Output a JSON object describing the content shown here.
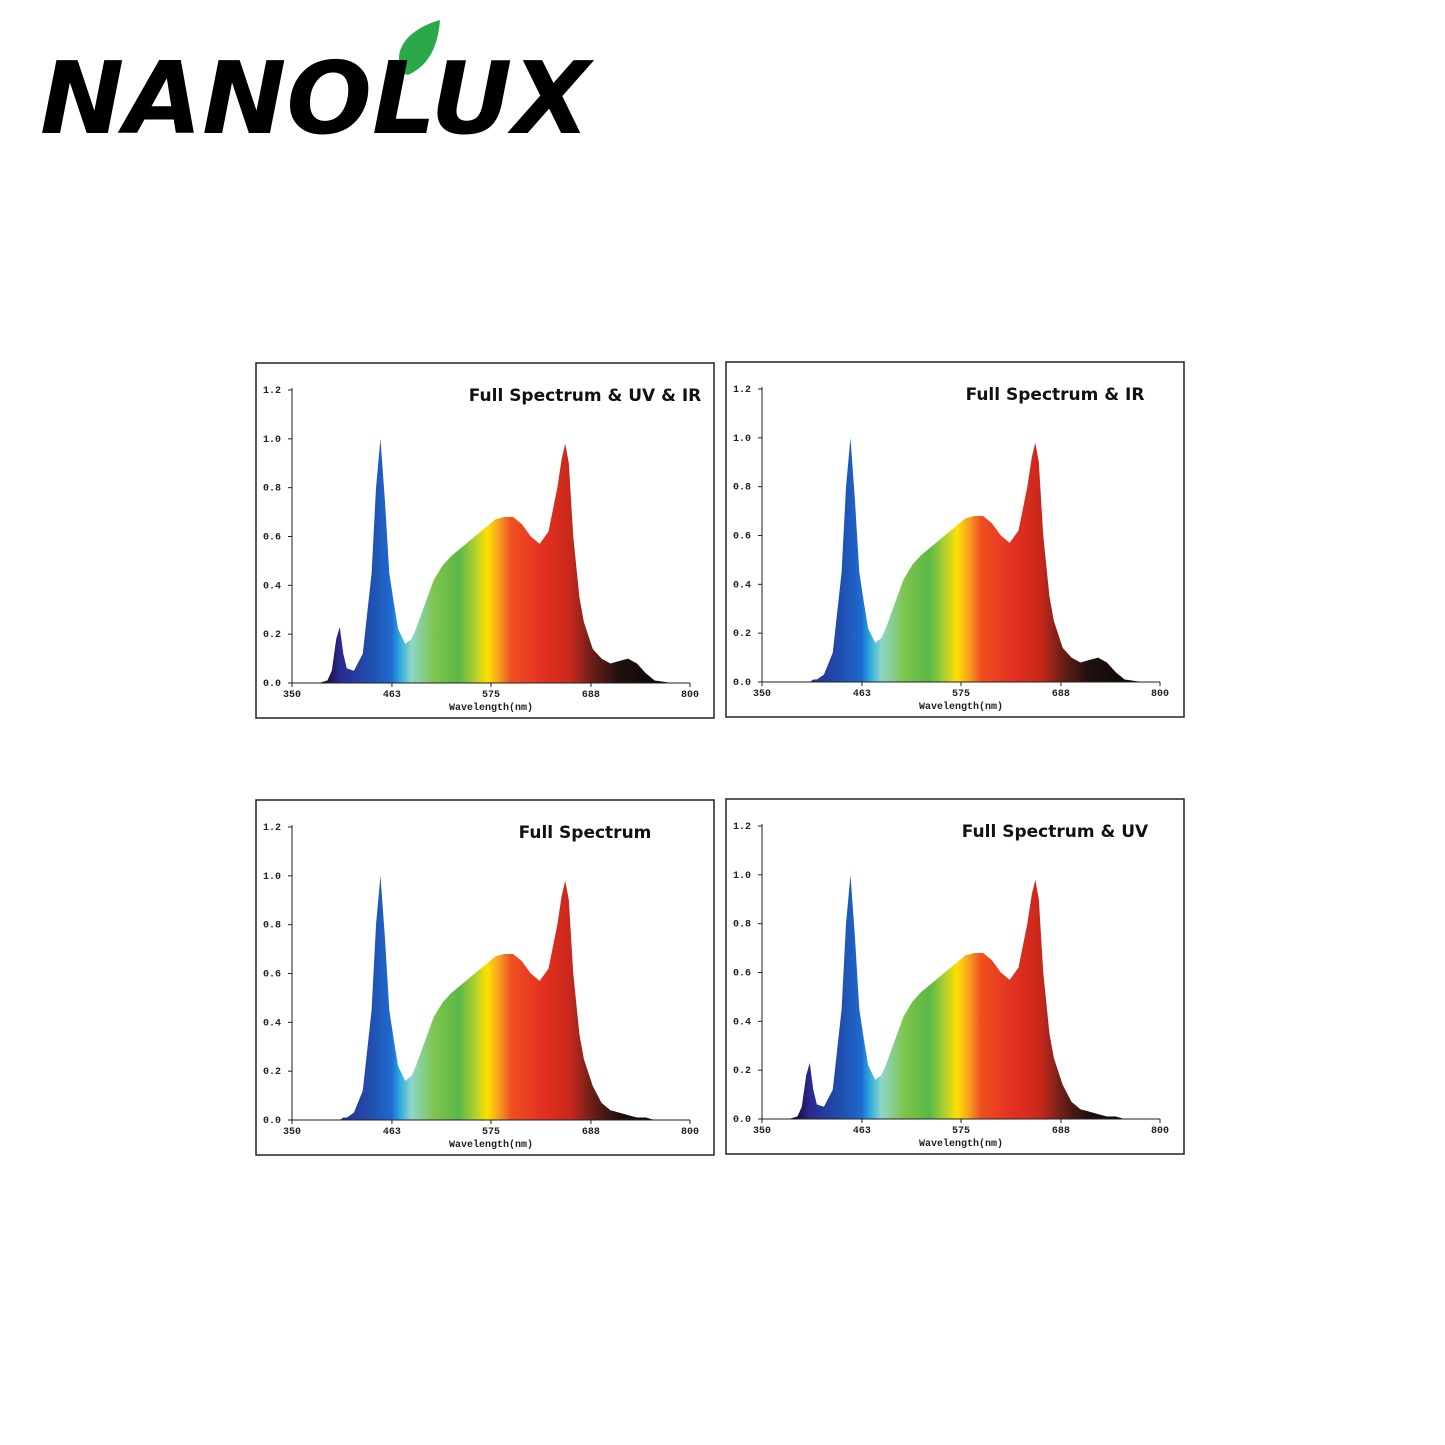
{
  "logo": "NANOLUX",
  "chart_data": [
    {
      "type": "area",
      "title": "Full Spectrum & UV & IR",
      "x_label": "Wavelength(nm)",
      "x": [
        350,
        380,
        390,
        395,
        400,
        404,
        408,
        412,
        420,
        430,
        440,
        445,
        450,
        455,
        460,
        465,
        470,
        478,
        485,
        490,
        500,
        510,
        520,
        530,
        540,
        550,
        560,
        570,
        580,
        590,
        600,
        610,
        620,
        630,
        640,
        650,
        655,
        659,
        663,
        668,
        675,
        680,
        690,
        700,
        710,
        720,
        730,
        740,
        750,
        760,
        780,
        800
      ],
      "values": [
        0,
        0,
        0.01,
        0.05,
        0.18,
        0.23,
        0.12,
        0.06,
        0.05,
        0.12,
        0.45,
        0.8,
        1.0,
        0.75,
        0.45,
        0.33,
        0.22,
        0.16,
        0.18,
        0.22,
        0.32,
        0.42,
        0.48,
        0.52,
        0.55,
        0.58,
        0.61,
        0.64,
        0.67,
        0.68,
        0.68,
        0.65,
        0.6,
        0.57,
        0.62,
        0.8,
        0.92,
        0.98,
        0.9,
        0.6,
        0.35,
        0.25,
        0.14,
        0.1,
        0.08,
        0.09,
        0.1,
        0.08,
        0.04,
        0.01,
        0,
        0
      ],
      "xlim": [
        350,
        800
      ],
      "xticks": [
        350,
        463,
        575,
        688,
        800
      ],
      "ylim": [
        0,
        1.2
      ],
      "yticks": [
        {
          "value": 0,
          "label": "0.0"
        },
        0.2,
        0.4,
        0.6,
        0.8,
        {
          "value": 1,
          "label": "1.0"
        },
        1.2
      ]
    },
    {
      "type": "area",
      "title": "Full Spectrum & IR",
      "x_label": "Wavelength(nm)",
      "x": [
        350,
        380,
        390,
        395,
        400,
        404,
        408,
        412,
        420,
        430,
        440,
        445,
        450,
        455,
        460,
        465,
        470,
        478,
        485,
        490,
        500,
        510,
        520,
        530,
        540,
        550,
        560,
        570,
        580,
        590,
        600,
        610,
        620,
        630,
        640,
        650,
        655,
        659,
        663,
        668,
        675,
        680,
        690,
        700,
        710,
        720,
        730,
        740,
        750,
        760,
        780,
        800
      ],
      "values": [
        0,
        0,
        0,
        0,
        0,
        0,
        0.01,
        0.01,
        0.03,
        0.12,
        0.45,
        0.8,
        1.0,
        0.75,
        0.45,
        0.33,
        0.22,
        0.16,
        0.18,
        0.22,
        0.32,
        0.42,
        0.48,
        0.52,
        0.55,
        0.58,
        0.61,
        0.64,
        0.67,
        0.68,
        0.68,
        0.65,
        0.6,
        0.57,
        0.62,
        0.8,
        0.92,
        0.98,
        0.9,
        0.6,
        0.35,
        0.25,
        0.14,
        0.1,
        0.08,
        0.09,
        0.1,
        0.08,
        0.04,
        0.01,
        0,
        0
      ],
      "xlim": [
        350,
        800
      ],
      "xticks": [
        350,
        463,
        575,
        688,
        800
      ],
      "ylim": [
        0,
        1.2
      ],
      "yticks": [
        {
          "value": 0,
          "label": "0.0"
        },
        0.2,
        0.4,
        0.6,
        0.8,
        {
          "value": 1,
          "label": "1.0"
        },
        1.2
      ]
    },
    {
      "type": "area",
      "title": "Full Spectrum",
      "x_label": "Wavelength(nm)",
      "x": [
        350,
        380,
        390,
        395,
        400,
        404,
        408,
        412,
        420,
        430,
        440,
        445,
        450,
        455,
        460,
        465,
        470,
        478,
        485,
        490,
        500,
        510,
        520,
        530,
        540,
        550,
        560,
        570,
        580,
        590,
        600,
        610,
        620,
        630,
        640,
        650,
        655,
        659,
        663,
        668,
        675,
        680,
        690,
        700,
        710,
        720,
        730,
        740,
        750,
        760,
        780,
        800
      ],
      "values": [
        0,
        0,
        0,
        0,
        0,
        0,
        0.01,
        0.01,
        0.03,
        0.12,
        0.45,
        0.8,
        1.0,
        0.75,
        0.45,
        0.33,
        0.22,
        0.16,
        0.18,
        0.22,
        0.32,
        0.42,
        0.48,
        0.52,
        0.55,
        0.58,
        0.61,
        0.64,
        0.67,
        0.68,
        0.68,
        0.65,
        0.6,
        0.57,
        0.62,
        0.8,
        0.92,
        0.98,
        0.9,
        0.6,
        0.35,
        0.25,
        0.14,
        0.07,
        0.04,
        0.03,
        0.02,
        0.01,
        0.01,
        0,
        0,
        0
      ],
      "xlim": [
        350,
        800
      ],
      "xticks": [
        350,
        463,
        575,
        688,
        800
      ],
      "ylim": [
        0,
        1.2
      ],
      "yticks": [
        {
          "value": 0,
          "label": "0.0"
        },
        0.2,
        0.4,
        0.6,
        0.8,
        {
          "value": 1,
          "label": "1.0"
        },
        1.2
      ]
    },
    {
      "type": "area",
      "title": "Full Spectrum & UV",
      "x_label": "Wavelength(nm)",
      "x": [
        350,
        380,
        390,
        395,
        400,
        404,
        408,
        412,
        420,
        430,
        440,
        445,
        450,
        455,
        460,
        465,
        470,
        478,
        485,
        490,
        500,
        510,
        520,
        530,
        540,
        550,
        560,
        570,
        580,
        590,
        600,
        610,
        620,
        630,
        640,
        650,
        655,
        659,
        663,
        668,
        675,
        680,
        690,
        700,
        710,
        720,
        730,
        740,
        750,
        760,
        780,
        800
      ],
      "values": [
        0,
        0,
        0.01,
        0.05,
        0.18,
        0.23,
        0.12,
        0.06,
        0.05,
        0.12,
        0.45,
        0.8,
        1.0,
        0.75,
        0.45,
        0.33,
        0.22,
        0.16,
        0.18,
        0.22,
        0.32,
        0.42,
        0.48,
        0.52,
        0.55,
        0.58,
        0.61,
        0.64,
        0.67,
        0.68,
        0.68,
        0.65,
        0.6,
        0.57,
        0.62,
        0.8,
        0.92,
        0.98,
        0.9,
        0.6,
        0.35,
        0.25,
        0.14,
        0.07,
        0.04,
        0.03,
        0.02,
        0.01,
        0.01,
        0,
        0,
        0
      ],
      "xlim": [
        350,
        800
      ],
      "xticks": [
        350,
        463,
        575,
        688,
        800
      ],
      "ylim": [
        0,
        1.2
      ],
      "yticks": [
        {
          "value": 0,
          "label": "0.0"
        },
        0.2,
        0.4,
        0.6,
        0.8,
        {
          "value": 1,
          "label": "1.0"
        },
        1.2
      ]
    }
  ]
}
